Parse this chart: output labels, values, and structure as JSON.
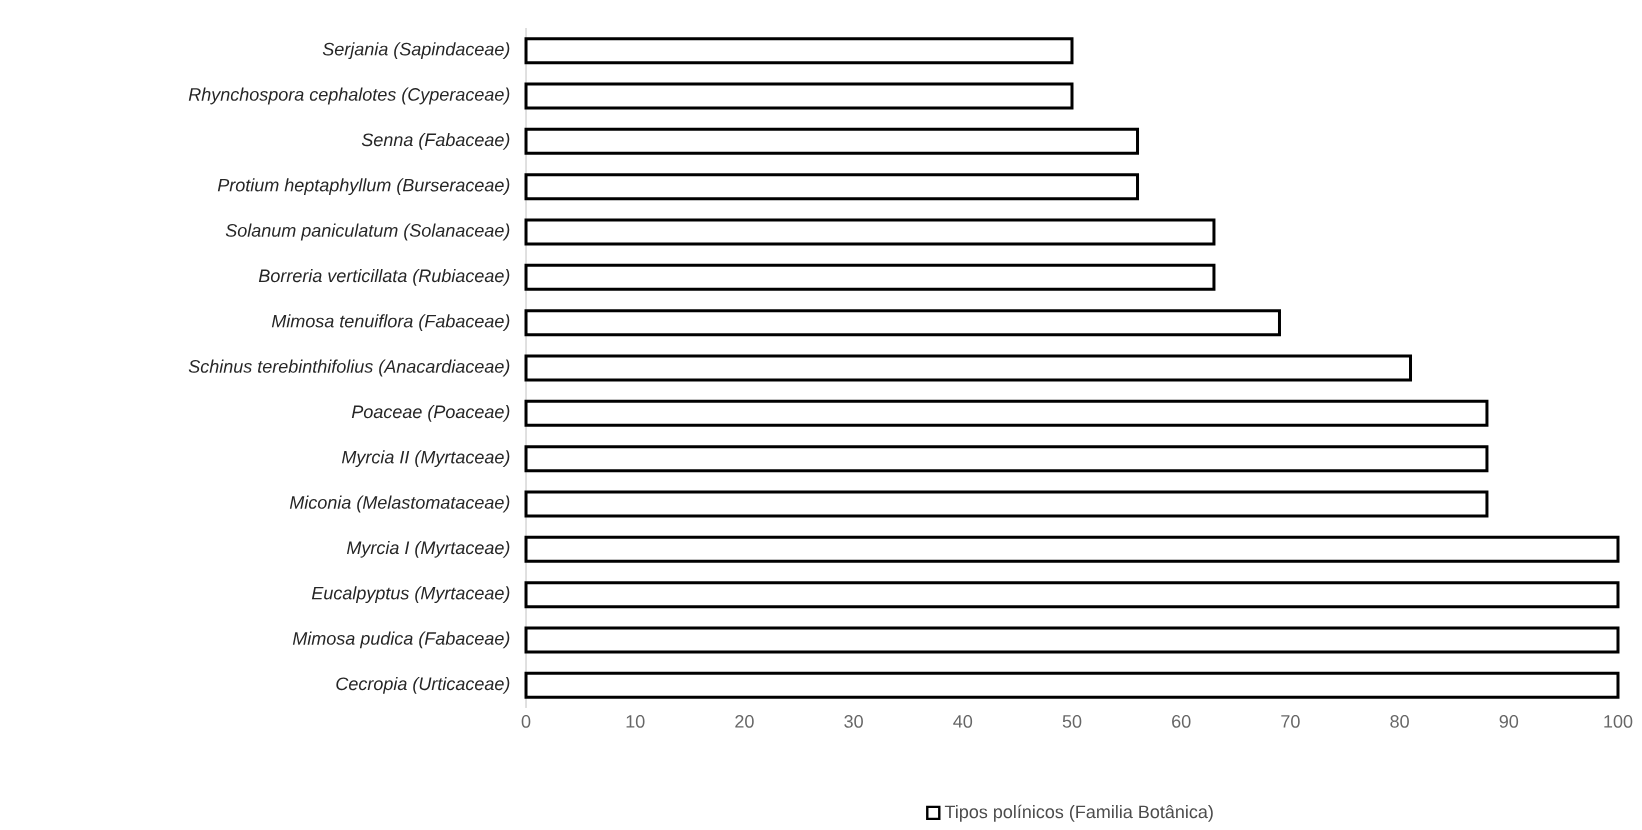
{
  "chart_data": {
    "type": "bar",
    "orientation": "horizontal",
    "categories": [
      "Serjania (Sapindaceae)",
      "Rhynchospora cephalotes (Cyperaceae)",
      "Senna (Fabaceae)",
      "Protium heptaphyllum (Burseraceae)",
      "Solanum paniculatum (Solanaceae)",
      "Borreria verticillata (Rubiaceae)",
      "Mimosa tenuiflora (Fabaceae)",
      "Schinus terebinthifolius (Anacardiaceae)",
      "Poaceae (Poaceae)",
      "Myrcia II (Myrtaceae)",
      "Miconia (Melastomataceae)",
      "Myrcia I (Myrtaceae)",
      "Eucalpyptus (Myrtaceae)",
      "Mimosa pudica (Fabaceae)",
      "Cecropia (Urticaceae)"
    ],
    "series": [
      {
        "name": "Tipos polínicos (Familia Botânica)",
        "color": "#ffffff",
        "values": [
          50,
          50,
          56,
          56,
          63,
          63,
          69,
          81,
          88,
          88,
          88,
          100,
          100,
          100,
          100
        ]
      }
    ],
    "xlim": [
      0,
      100
    ],
    "xticks": [
      0,
      10,
      20,
      30,
      40,
      50,
      60,
      70,
      80,
      90,
      100
    ],
    "legend": "bottom",
    "grid": false
  }
}
